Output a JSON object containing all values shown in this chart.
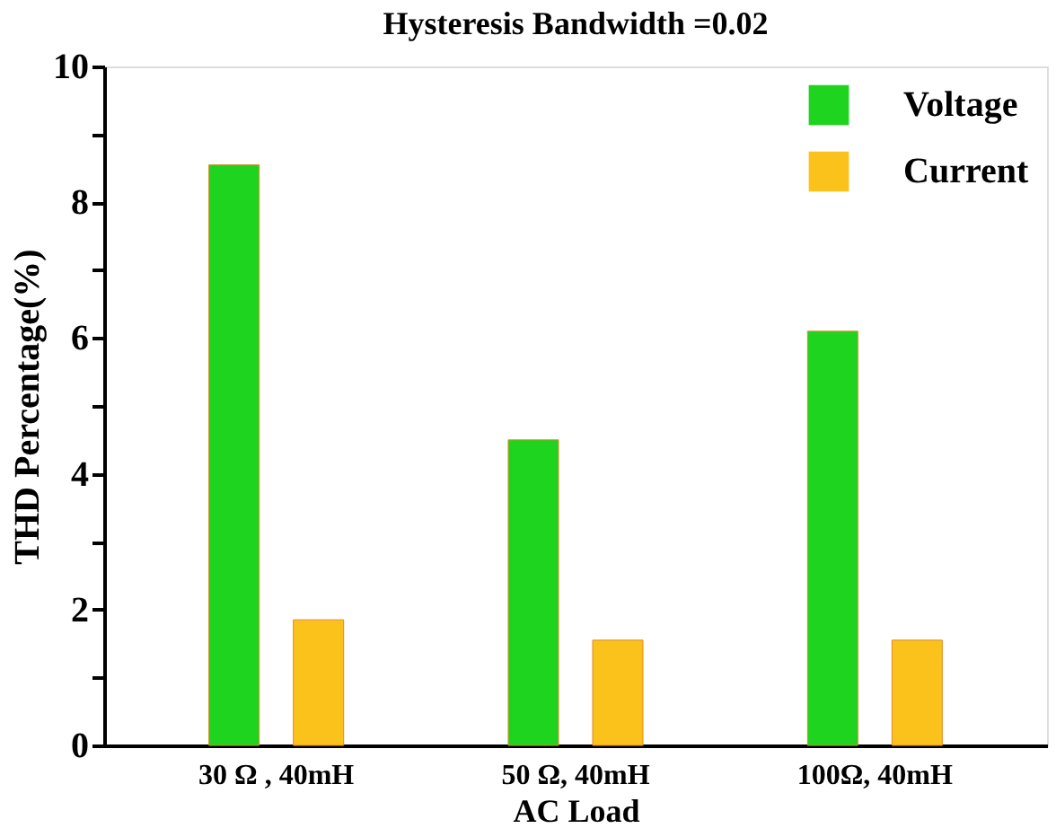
{
  "chart_data": {
    "type": "bar",
    "title": "Hysteresis Bandwidth =0.02",
    "xlabel": "AC Load",
    "ylabel": "THD Percentage(%)",
    "categories": [
      "30 Ω , 40mH",
      "50 Ω, 40mH",
      "100Ω, 40mH"
    ],
    "series": [
      {
        "name": "Voltage",
        "color": "#1ed41e",
        "values": [
          8.55,
          4.5,
          6.1
        ]
      },
      {
        "name": "Current",
        "color": "#fcc21c",
        "values": [
          1.85,
          1.55,
          1.55
        ]
      }
    ],
    "ylim": [
      0,
      10
    ],
    "yticks": [
      0,
      {
        "value": 1,
        "label": null
      },
      2,
      {
        "value": 3,
        "label": null
      },
      4,
      {
        "value": 5,
        "label": null
      },
      6,
      {
        "value": 7,
        "label": null
      },
      8,
      {
        "value": 9,
        "label": null
      },
      10
    ],
    "grid": false,
    "legend": "top right"
  }
}
